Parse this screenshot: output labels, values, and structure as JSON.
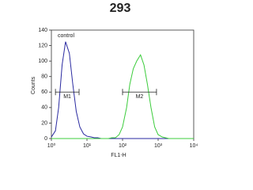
{
  "chart_data": {
    "type": "line",
    "title": "293",
    "xlabel": "FL1-H",
    "ylabel": "Counts",
    "xscale": "log",
    "x": [
      1,
      1.3,
      1.6,
      2,
      2.5,
      3.2,
      4,
      5,
      6.3,
      8,
      10,
      13,
      16,
      20,
      25,
      32,
      40,
      50,
      63,
      80,
      100,
      130,
      160,
      200,
      250,
      320,
      400,
      500,
      630,
      800,
      1000,
      1300,
      1600,
      2000,
      2500,
      3200,
      4000,
      5000,
      6300,
      8000,
      10000
    ],
    "series": [
      {
        "name": "control",
        "color": "#2a2aa0",
        "values": [
          2,
          10,
          40,
          95,
          125,
          110,
          70,
          35,
          15,
          6,
          3,
          2,
          1,
          1,
          0,
          0,
          0,
          0,
          0,
          0,
          0,
          0,
          0,
          0,
          0,
          0,
          0,
          0,
          0,
          0,
          0,
          0,
          0,
          0,
          0,
          0,
          0,
          0,
          0,
          0,
          0
        ]
      },
      {
        "color": "#3ccc3c",
        "values": [
          0,
          0,
          0,
          0,
          0,
          0,
          0,
          0,
          0,
          0,
          0,
          0,
          0,
          0,
          0,
          0,
          0,
          1,
          1,
          5,
          15,
          40,
          70,
          90,
          100,
          108,
          95,
          70,
          40,
          15,
          5,
          2,
          1,
          0,
          0,
          0,
          0,
          0,
          0,
          0,
          0
        ]
      }
    ],
    "markers": [
      {
        "label": "M1",
        "range": [
          1.3,
          6
        ],
        "y": 60
      },
      {
        "label": "M2",
        "range": [
          100,
          900
        ],
        "y": 60
      }
    ],
    "xlim": [
      1,
      10000
    ],
    "xticks": [
      {
        "value": 1,
        "label": "10⁰"
      },
      {
        "value": 10,
        "label": "10¹"
      },
      {
        "value": 100,
        "label": "10²"
      },
      {
        "value": 1000,
        "label": "10³"
      },
      {
        "value": 10000,
        "label": "10⁴"
      }
    ],
    "ylim": [
      0,
      140
    ],
    "yticks": [
      0,
      20,
      40,
      60,
      80,
      100,
      120,
      140
    ]
  }
}
